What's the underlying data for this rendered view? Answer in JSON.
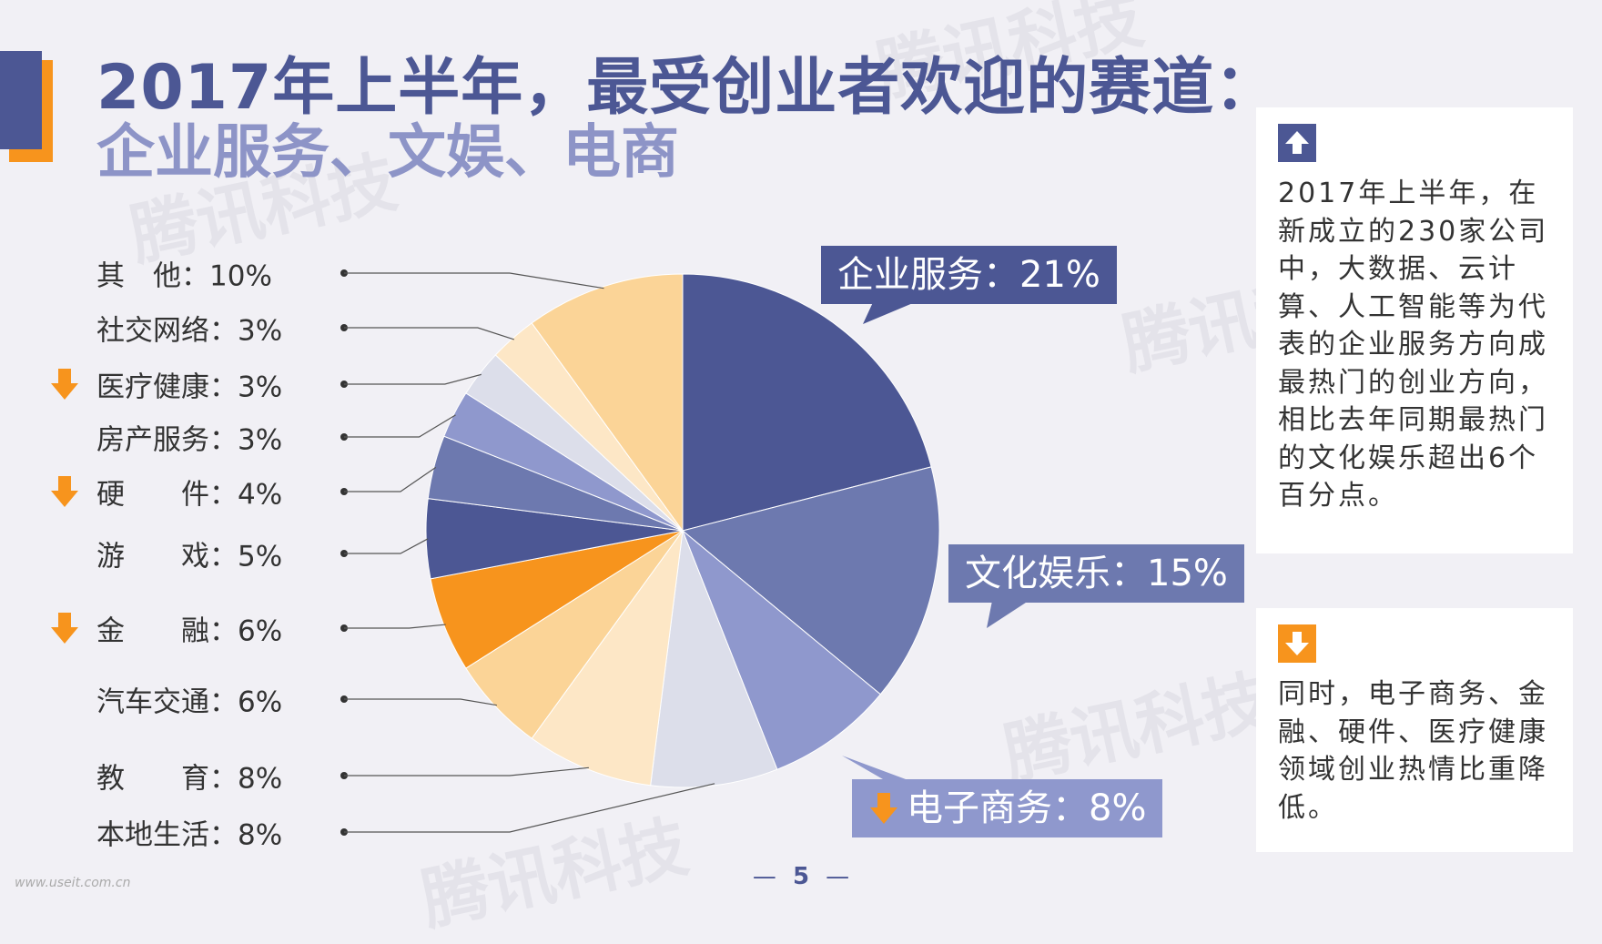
{
  "title": {
    "line1": "2017年上半年，最受创业者欢迎的赛道：",
    "line2": "企业服务、文娱、电商"
  },
  "watermark_text": "腾讯科技",
  "chart_data": {
    "type": "pie",
    "title": "",
    "start_angle_deg": 0,
    "direction": "clockwise",
    "slices": [
      {
        "label": "企业服务",
        "value": 21,
        "color": "#4c5794",
        "display": "企业服务：21%"
      },
      {
        "label": "文化娱乐",
        "value": 15,
        "color": "#6d79af",
        "display": "文化娱乐：15%"
      },
      {
        "label": "电子商务",
        "value": 8,
        "color": "#8f98cd",
        "display": "电子商务：8%",
        "decline": true
      },
      {
        "label": "本地生活",
        "value": 8,
        "color": "#dcdeea",
        "display": "本地生活：8%"
      },
      {
        "label": "教育",
        "value": 8,
        "color": "#fde7c6",
        "display": "教　　育：8%"
      },
      {
        "label": "汽车交通",
        "value": 6,
        "color": "#fbd497",
        "display": "汽车交通：6%"
      },
      {
        "label": "金融",
        "value": 6,
        "color": "#f7941d",
        "display": "金　　融：6%",
        "decline": true
      },
      {
        "label": "游戏",
        "value": 5,
        "color": "#4c5794",
        "display": "游　　戏：5%"
      },
      {
        "label": "硬件",
        "value": 4,
        "color": "#6d79af",
        "display": "硬　　件：4%",
        "decline": true
      },
      {
        "label": "房产服务",
        "value": 3,
        "color": "#8f98cd",
        "display": "房产服务：3%"
      },
      {
        "label": "医疗健康",
        "value": 3,
        "color": "#dcdeea",
        "display": "医疗健康：3%",
        "decline": true
      },
      {
        "label": "社交网络",
        "value": 3,
        "color": "#fde7c6",
        "display": "社交网络：3%"
      },
      {
        "label": "其他",
        "value": 10,
        "color": "#fbd497",
        "display": "其　他：10%"
      }
    ]
  },
  "left_labels": [
    {
      "text": "其　他：10%",
      "decline": false,
      "slice": "其他"
    },
    {
      "text": "社交网络：3%",
      "decline": false,
      "slice": "社交网络"
    },
    {
      "text": "医疗健康：3%",
      "decline": true,
      "slice": "医疗健康"
    },
    {
      "text": "房产服务：3%",
      "decline": false,
      "slice": "房产服务"
    },
    {
      "text": "硬　　件：4%",
      "decline": true,
      "slice": "硬件"
    },
    {
      "text": "游　　戏：5%",
      "decline": false,
      "slice": "游戏"
    },
    {
      "text": "金　　融：6%",
      "decline": true,
      "slice": "金融"
    },
    {
      "text": "汽车交通：6%",
      "decline": false,
      "slice": "汽车交通"
    },
    {
      "text": "教　　育：8%",
      "decline": false,
      "slice": "教育"
    },
    {
      "text": "本地生活：8%",
      "decline": false,
      "slice": "本地生活"
    }
  ],
  "callouts": {
    "enterprise": "企业服务：21%",
    "culture": "文化娱乐：15%",
    "ecommerce": "电子商务：8%"
  },
  "info_up": {
    "icon": "arrow-up-icon",
    "text": "2017年上半年，在新成立的230家公司中，大数据、云计算、人工智能等为代表的企业服务方向成最热门的创业方向，相比去年同期最热门的文化娱乐超出6个百分点。"
  },
  "info_down": {
    "icon": "arrow-down-icon",
    "text": "同时，电子商务、金融、硬件、医疗健康领域创业热情比重降低。"
  },
  "page_number": "5",
  "footer_url": "www.useit.com.cn",
  "colors": {
    "primary": "#4c5794",
    "accent": "#f7941d",
    "background": "#f1f0f5"
  }
}
